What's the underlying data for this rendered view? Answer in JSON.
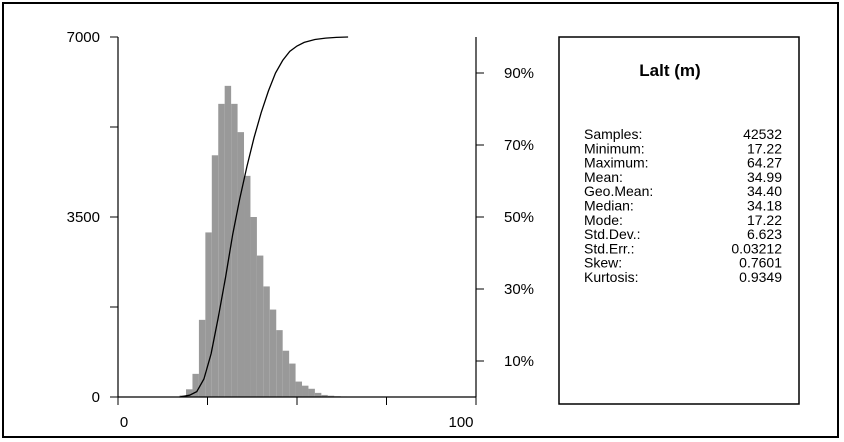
{
  "chart_data": {
    "type": "bar",
    "x_range": [
      0,
      100
    ],
    "y_range": [
      0,
      7000
    ],
    "x_ticks": [
      "0",
      "100"
    ],
    "y_ticks": [
      "0",
      "3500",
      "7000"
    ],
    "right_ticks": [
      "10%",
      "30%",
      "50%",
      "70%",
      "90%"
    ],
    "bin_width": 1.8,
    "bins": [
      {
        "x": 17.2,
        "count": 30
      },
      {
        "x": 19.0,
        "count": 150
      },
      {
        "x": 20.8,
        "count": 450
      },
      {
        "x": 22.6,
        "count": 1500
      },
      {
        "x": 24.4,
        "count": 3200
      },
      {
        "x": 26.2,
        "count": 4700
      },
      {
        "x": 28.0,
        "count": 5700
      },
      {
        "x": 29.8,
        "count": 6050
      },
      {
        "x": 31.6,
        "count": 5700
      },
      {
        "x": 33.4,
        "count": 5150
      },
      {
        "x": 35.2,
        "count": 4300
      },
      {
        "x": 37.0,
        "count": 3500
      },
      {
        "x": 38.8,
        "count": 2750
      },
      {
        "x": 40.6,
        "count": 2150
      },
      {
        "x": 42.4,
        "count": 1700
      },
      {
        "x": 44.2,
        "count": 1300
      },
      {
        "x": 46.0,
        "count": 900
      },
      {
        "x": 47.8,
        "count": 650
      },
      {
        "x": 49.6,
        "count": 300
      },
      {
        "x": 51.4,
        "count": 220
      },
      {
        "x": 53.2,
        "count": 160
      },
      {
        "x": 55.0,
        "count": 80
      },
      {
        "x": 56.8,
        "count": 40
      },
      {
        "x": 58.6,
        "count": 25
      },
      {
        "x": 60.4,
        "count": 15
      },
      {
        "x": 62.2,
        "count": 10
      }
    ],
    "cumulative_line": [
      [
        17.2,
        0
      ],
      [
        20,
        0.5
      ],
      [
        22,
        1.5
      ],
      [
        24,
        5
      ],
      [
        26,
        12
      ],
      [
        28,
        22
      ],
      [
        30,
        33
      ],
      [
        32,
        45
      ],
      [
        34,
        55
      ],
      [
        36,
        64
      ],
      [
        38,
        72
      ],
      [
        40,
        79
      ],
      [
        42,
        85
      ],
      [
        44,
        90
      ],
      [
        46,
        93.5
      ],
      [
        48,
        96
      ],
      [
        50,
        97.5
      ],
      [
        52,
        98.5
      ],
      [
        55,
        99.3
      ],
      [
        58,
        99.7
      ],
      [
        61,
        99.9
      ],
      [
        64.27,
        100
      ]
    ]
  },
  "stats": {
    "title": "Lalt (m)",
    "rows": [
      {
        "label": "Samples:",
        "value": "42532"
      },
      {
        "label": "Minimum:",
        "value": "17.22"
      },
      {
        "label": "Maximum:",
        "value": "64.27"
      },
      {
        "label": "Mean:",
        "value": "34.99"
      },
      {
        "label": "Geo.Mean:",
        "value": "34.40"
      },
      {
        "label": "Median:",
        "value": "34.18"
      },
      {
        "label": "Mode:",
        "value": "17.22"
      },
      {
        "label": "Std.Dev.:",
        "value": "6.623"
      },
      {
        "label": "Std.Err.:",
        "value": "0.03212"
      },
      {
        "label": "Skew:",
        "value": "0.7601"
      },
      {
        "label": "Kurtosis:",
        "value": "0.9349"
      }
    ]
  },
  "colors": {
    "bars": "#999999",
    "line": "#000000",
    "axes": "#000000"
  }
}
